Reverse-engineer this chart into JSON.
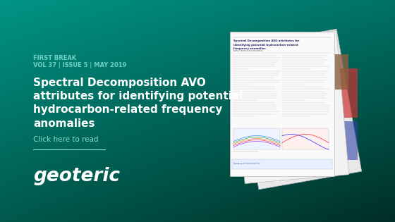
{
  "title_small_line1": "FIRST BREAK",
  "title_small_line2": "VOL 37 | ISSUE 5 | MAY 2019",
  "main_title_line1": "Spectral Decomposition AVO",
  "main_title_line2": "attributes for identifying potential",
  "main_title_line3": "hydrocarbon-related frequency",
  "main_title_line4": "anomalies",
  "link_text": "Click here to read",
  "brand": "geoteric",
  "tl_color": [
    0.0,
    0.58,
    0.52
  ],
  "tr_color": [
    0.0,
    0.45,
    0.4
  ],
  "bl_color": [
    0.0,
    0.35,
    0.3
  ],
  "br_color": [
    0.0,
    0.18,
    0.15
  ],
  "small_label_color": "#6ECFBF",
  "white": "#FFFFFF",
  "link_color": "#88DDCC",
  "page_front_color": "#FAFAFA",
  "page_mid_color": "#F2F2F2",
  "page_back_color": "#E8E8E8"
}
